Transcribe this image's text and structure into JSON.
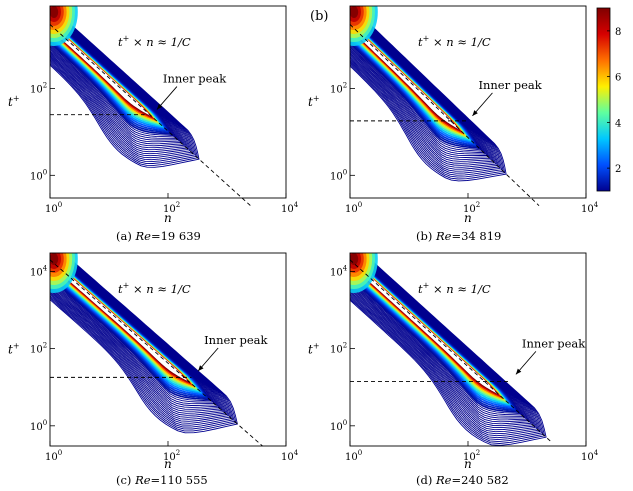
{
  "figure": {
    "colorbar": {
      "ticks": [
        "2",
        "4",
        "6",
        "8"
      ],
      "range": [
        1,
        9
      ],
      "colors": [
        "#00008f",
        "#0050ff",
        "#00c8ff",
        "#5fff9f",
        "#ffef00",
        "#ff7000",
        "#d60000",
        "#800000"
      ]
    },
    "panel_b_label": "(b)",
    "peak_label": "Inner peak",
    "annotation_text": "t",
    "annotation_sup": "+",
    "annotation_rest": " × n ≈ 1/C"
  },
  "chart_data": [
    {
      "type": "heatmap",
      "panel": "(a)",
      "caption_prefix": "(a) ",
      "caption_re": "Re",
      "caption_value": "=19 639",
      "xlabel": "n",
      "ylabel": "t",
      "ylabel_sup": "+",
      "x_scale": "log",
      "y_scale": "log",
      "xlim": [
        1,
        10000
      ],
      "ylim": [
        0.3,
        8000
      ],
      "x_ticks": [
        {
          "base": "10",
          "exp": "0",
          "v": 1
        },
        {
          "base": "10",
          "exp": "2",
          "v": 100
        },
        {
          "base": "10",
          "exp": "4",
          "v": 10000
        }
      ],
      "y_ticks": [
        {
          "base": "10",
          "exp": "0",
          "v": 1
        },
        {
          "base": "10",
          "exp": "2",
          "v": 100
        }
      ],
      "diagonal_line": {
        "x": [
          1,
          2500
        ],
        "y": [
          3000,
          0.2
        ]
      },
      "horizontal_line": {
        "x": [
          1,
          40
        ],
        "y": 25
      },
      "inner_peak": {
        "n": 60,
        "t": 28
      },
      "contour_levels": 30
    },
    {
      "type": "heatmap",
      "panel": "(b)",
      "caption_prefix": "(b) ",
      "caption_re": "Re",
      "caption_value": "=34 819",
      "xlabel": "n",
      "ylabel": "t",
      "ylabel_sup": "+",
      "x_scale": "log",
      "y_scale": "log",
      "xlim": [
        1,
        10000
      ],
      "ylim": [
        0.3,
        8000
      ],
      "x_ticks": [
        {
          "base": "10",
          "exp": "0",
          "v": 1
        },
        {
          "base": "10",
          "exp": "2",
          "v": 100
        },
        {
          "base": "10",
          "exp": "4",
          "v": 10000
        }
      ],
      "y_ticks": [
        {
          "base": "10",
          "exp": "0",
          "v": 1
        },
        {
          "base": "10",
          "exp": "2",
          "v": 100
        }
      ],
      "diagonal_line": {
        "x": [
          1,
          1600
        ],
        "y": [
          3000,
          0.2
        ]
      },
      "horizontal_line": {
        "x": [
          1,
          100
        ],
        "y": 18
      },
      "inner_peak": {
        "n": 110,
        "t": 20
      },
      "contour_levels": 30
    },
    {
      "type": "heatmap",
      "panel": "(c)",
      "caption_prefix": "(c) ",
      "caption_re": "Re",
      "caption_value": "=110 555",
      "xlabel": "n",
      "ylabel": "t",
      "ylabel_sup": "+",
      "x_scale": "log",
      "y_scale": "log",
      "xlim": [
        1,
        10000
      ],
      "ylim": [
        0.3,
        30000
      ],
      "x_ticks": [
        {
          "base": "10",
          "exp": "0",
          "v": 1
        },
        {
          "base": "10",
          "exp": "2",
          "v": 100
        },
        {
          "base": "10",
          "exp": "4",
          "v": 10000
        }
      ],
      "y_ticks": [
        {
          "base": "10",
          "exp": "0",
          "v": 1
        },
        {
          "base": "10",
          "exp": "2",
          "v": 100
        },
        {
          "base": "10",
          "exp": "4",
          "v": 10000
        }
      ],
      "diagonal_line": {
        "x": [
          1,
          4000
        ],
        "y": [
          20000,
          0.3
        ]
      },
      "horizontal_line": {
        "x": [
          1,
          250
        ],
        "y": 18
      },
      "inner_peak": {
        "n": 300,
        "t": 22
      },
      "contour_levels": 30
    },
    {
      "type": "heatmap",
      "panel": "(d)",
      "caption_prefix": "(d) ",
      "caption_re": "Re",
      "caption_value": "=240 582",
      "xlabel": "n",
      "ylabel": "t",
      "ylabel_sup": "+",
      "x_scale": "log",
      "y_scale": "log",
      "xlim": [
        1,
        10000
      ],
      "ylim": [
        0.3,
        30000
      ],
      "x_ticks": [
        {
          "base": "10",
          "exp": "0",
          "v": 1
        },
        {
          "base": "10",
          "exp": "2",
          "v": 100
        },
        {
          "base": "10",
          "exp": "4",
          "v": 10000
        }
      ],
      "y_ticks": [
        {
          "base": "10",
          "exp": "0",
          "v": 1
        },
        {
          "base": "10",
          "exp": "2",
          "v": 100
        },
        {
          "base": "10",
          "exp": "4",
          "v": 10000
        }
      ],
      "diagonal_line": {
        "x": [
          1,
          2500
        ],
        "y": [
          20000,
          0.4
        ]
      },
      "horizontal_line": {
        "x": [
          1,
          500
        ],
        "y": 14
      },
      "inner_peak": {
        "n": 600,
        "t": 18
      },
      "contour_levels": 30
    }
  ]
}
